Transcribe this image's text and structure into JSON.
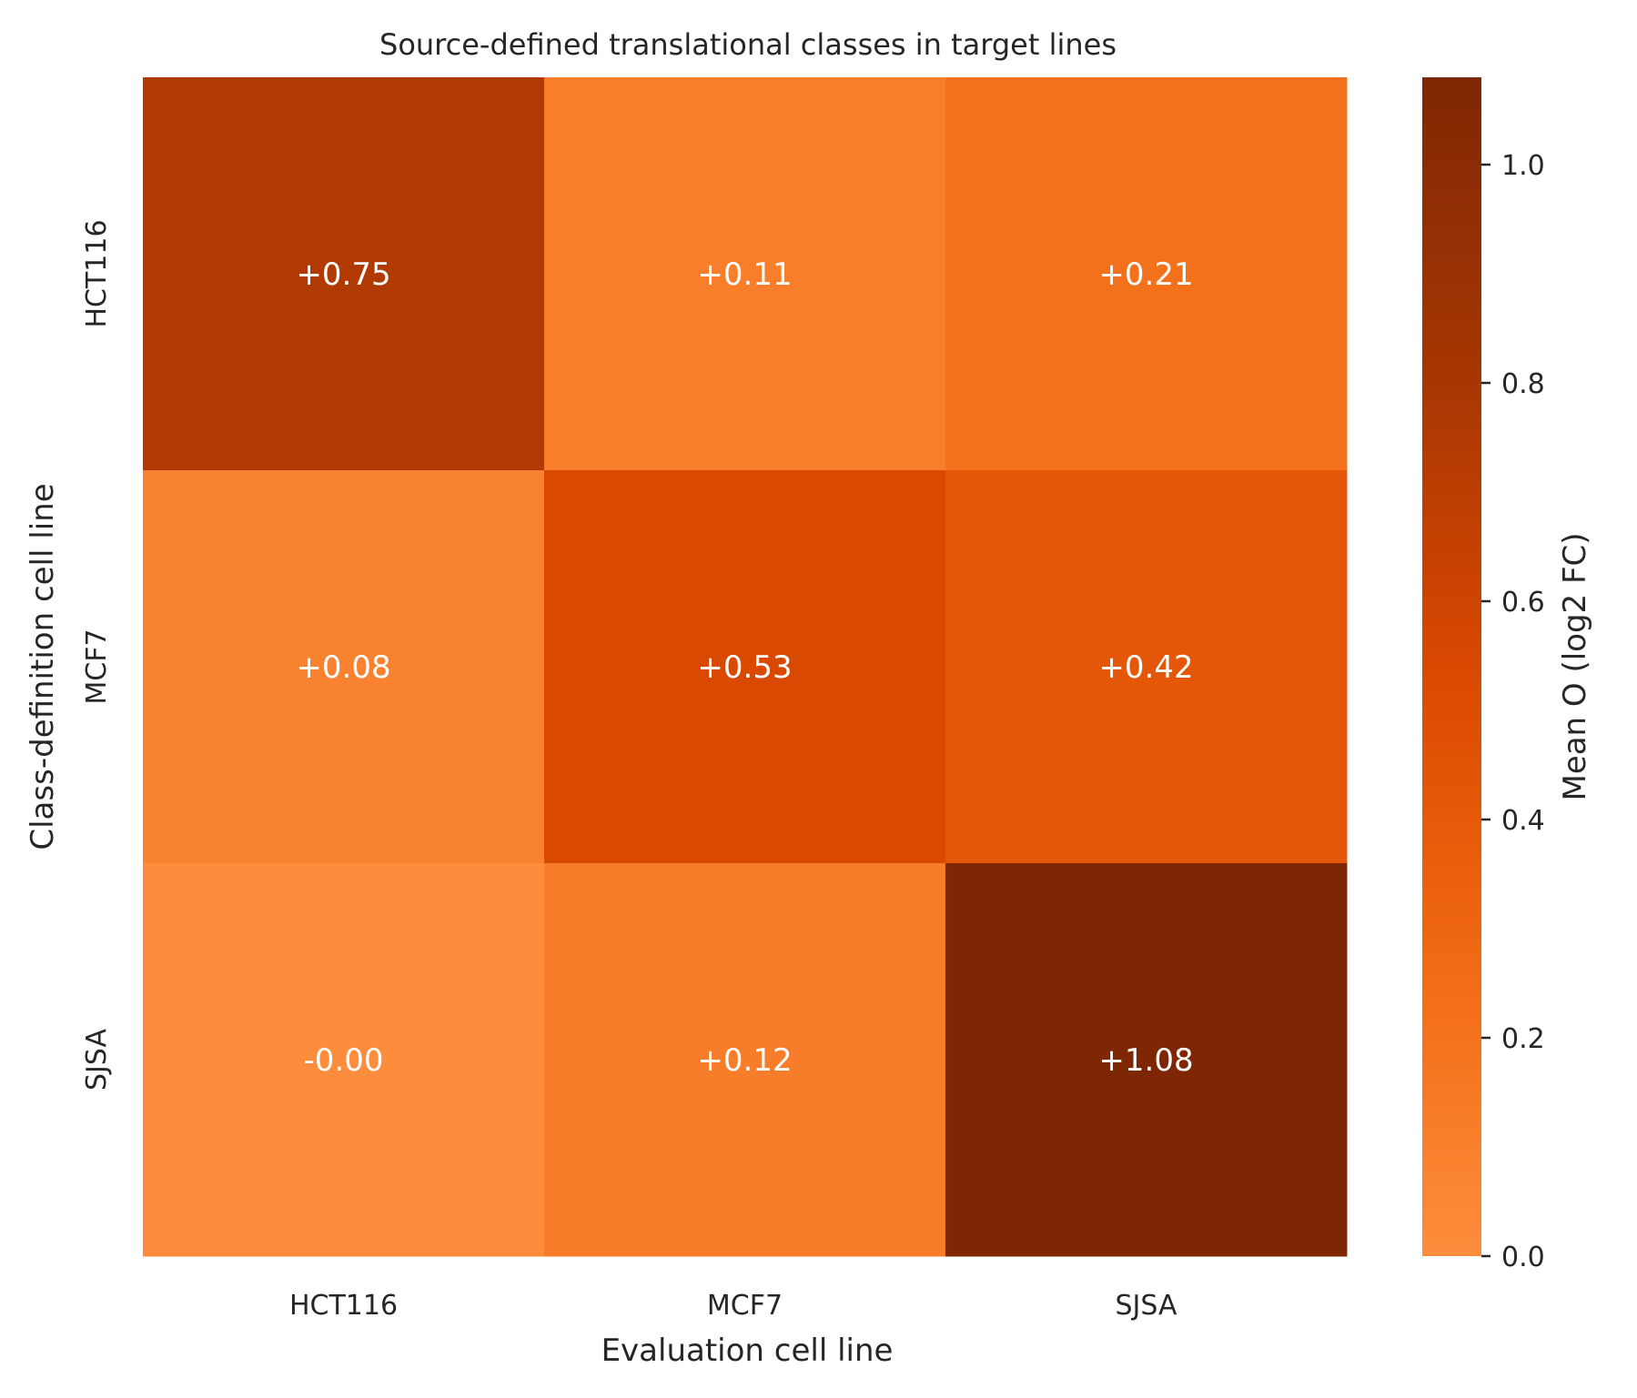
{
  "chart_data": {
    "type": "heatmap",
    "title": "Source-defined translational classes in target lines",
    "xlabel": "Evaluation cell line",
    "ylabel": "Class-definition cell line",
    "x_categories": [
      "HCT116",
      "MCF7",
      "SJSA"
    ],
    "y_categories": [
      "HCT116",
      "MCF7",
      "SJSA"
    ],
    "values": [
      [
        0.75,
        0.11,
        0.21
      ],
      [
        0.08,
        0.53,
        0.42
      ],
      [
        -0.0,
        0.12,
        1.08
      ]
    ],
    "annotations": [
      [
        "+0.75",
        "+0.11",
        "+0.21"
      ],
      [
        "+0.08",
        "+0.53",
        "+0.42"
      ],
      [
        "-0.00",
        "+0.12",
        "+1.08"
      ]
    ],
    "colorbar": {
      "label": "Mean O (log2 FC)",
      "range": [
        0.0,
        1.08
      ],
      "ticks": [
        0.0,
        0.2,
        0.4,
        0.6,
        0.8,
        1.0
      ],
      "tick_labels": [
        "0.0",
        "0.2",
        "0.4",
        "0.6",
        "0.8",
        "1.0"
      ]
    },
    "colormap": {
      "name": "Oranges (partial)",
      "stops": [
        "#fd8d3c",
        "#f16913",
        "#d94801",
        "#a63603",
        "#7f2704"
      ]
    },
    "annotation_color": "#ffffff",
    "grid": false
  }
}
